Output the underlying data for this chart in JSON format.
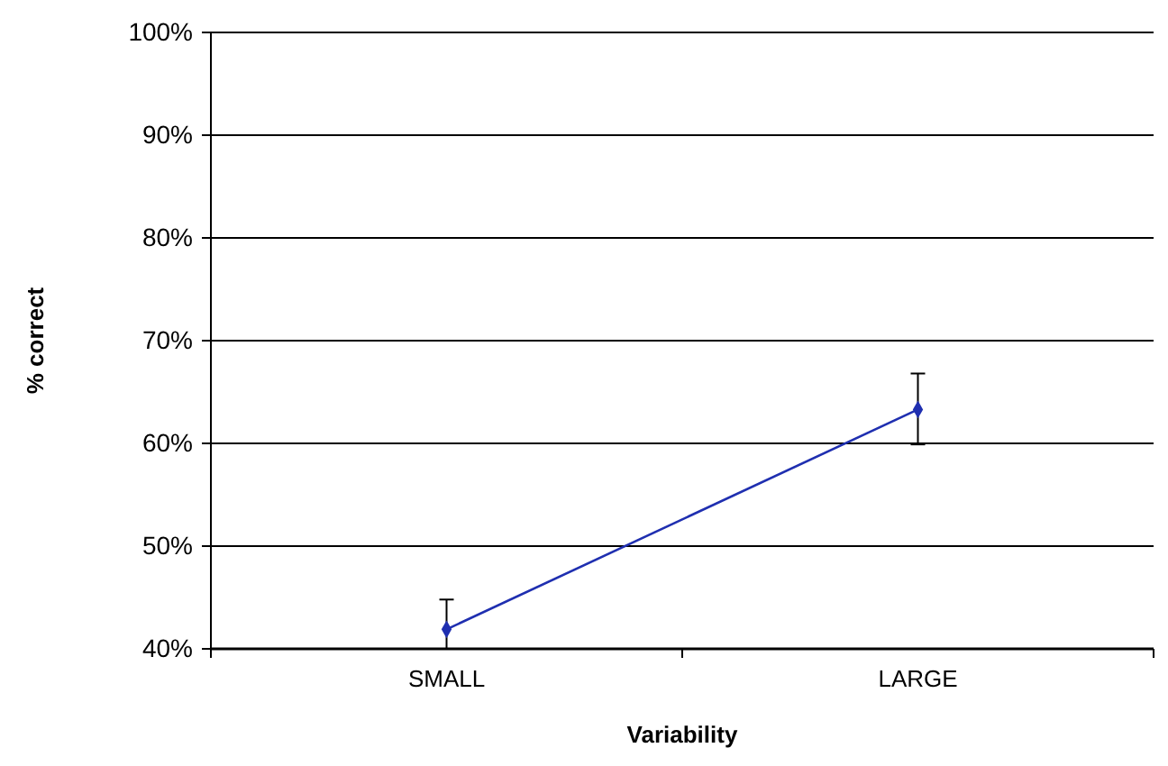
{
  "chart_data": {
    "type": "line",
    "xlabel": "Variability",
    "ylabel": "% correct",
    "categories": [
      "SMALL",
      "LARGE"
    ],
    "series": [
      {
        "color": "#1f2fb0",
        "values": [
          41.9,
          63.3
        ],
        "errors": [
          [
            40,
            44.8
          ],
          [
            59.9,
            66.8
          ]
        ]
      }
    ],
    "ylim": [
      40,
      100
    ],
    "yticks": [
      {
        "value": 40,
        "label": "40%"
      },
      {
        "value": 50,
        "label": "50%"
      },
      {
        "value": 60,
        "label": "60%"
      },
      {
        "value": 70,
        "label": "70%"
      },
      {
        "value": 80,
        "label": "80%"
      },
      {
        "value": 90,
        "label": "90%"
      },
      {
        "value": 100,
        "label": "100%"
      }
    ],
    "grid": "y",
    "marker": "diamond"
  }
}
